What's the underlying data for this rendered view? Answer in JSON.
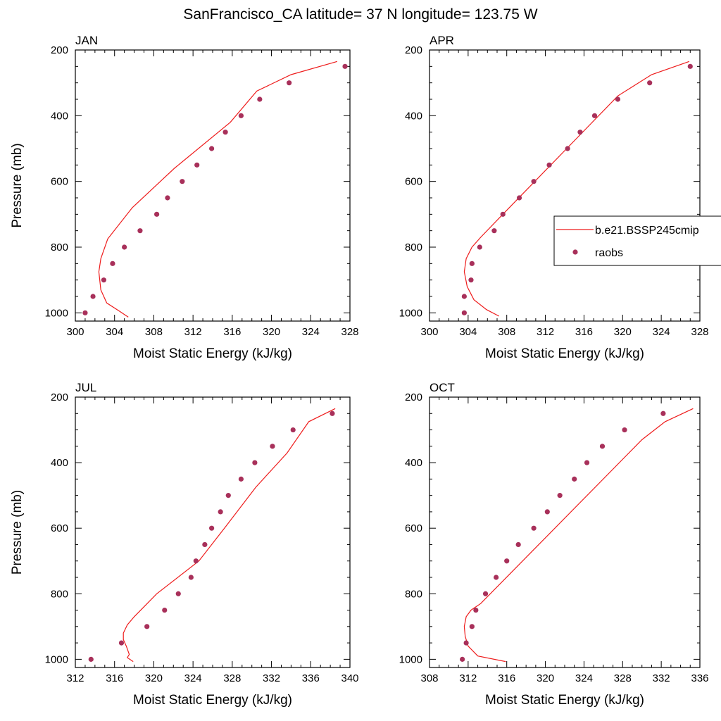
{
  "figure": {
    "title": "SanFrancisco_CA  latitude= 37 N longitude= 123.75 W",
    "model_color": "#ee1c1c",
    "obs_color": "#a8305a"
  },
  "legend": {
    "panel": "APR",
    "entries": [
      {
        "label": "b.e21.BSSP245cmip",
        "marker": "line"
      },
      {
        "label": "raobs",
        "marker": "dot"
      }
    ]
  },
  "chart_data": [
    {
      "type": "line",
      "title": "JAN",
      "xlabel": "Moist Static Energy (kJ/kg)",
      "ylabel": "Pressure (mb)",
      "xlim": [
        300,
        328
      ],
      "ylim": [
        1025,
        200
      ],
      "xticks": [
        300,
        304,
        308,
        312,
        316,
        320,
        324,
        328
      ],
      "yticks": [
        200,
        400,
        600,
        800,
        1000
      ],
      "series": [
        {
          "name": "b.e21.BSSP245cmip",
          "kind": "line",
          "x": [
            305.4,
            304.5,
            303.2,
            302.6,
            302.4,
            302.6,
            303.3,
            305.8,
            310.1,
            315.8,
            318.5,
            322.0,
            326.7
          ],
          "y": [
            1013,
            995,
            970,
            930,
            875,
            835,
            775,
            680,
            560,
            420,
            325,
            275,
            235
          ]
        },
        {
          "name": "raobs",
          "kind": "dot",
          "x": [
            301.0,
            301.8,
            302.9,
            303.8,
            305.0,
            306.6,
            308.3,
            309.4,
            310.9,
            312.4,
            313.9,
            315.3,
            316.9,
            318.8,
            321.8,
            327.5
          ],
          "y": [
            1000,
            950,
            900,
            850,
            800,
            750,
            700,
            650,
            600,
            550,
            500,
            450,
            400,
            350,
            300,
            250
          ]
        }
      ]
    },
    {
      "type": "line",
      "title": "APR",
      "xlabel": "Moist Static Energy (kJ/kg)",
      "ylabel": "",
      "xlim": [
        300,
        328
      ],
      "ylim": [
        1025,
        200
      ],
      "xticks": [
        300,
        304,
        308,
        312,
        316,
        320,
        324,
        328
      ],
      "yticks": [
        200,
        400,
        600,
        800,
        1000
      ],
      "series": [
        {
          "name": "b.e21.BSSP245cmip",
          "kind": "line",
          "x": [
            307.2,
            305.9,
            304.6,
            303.9,
            303.6,
            303.8,
            304.4,
            305.3,
            307.6,
            310.9,
            315.2,
            319.5,
            323.0,
            326.9
          ],
          "y": [
            1010,
            990,
            960,
            920,
            875,
            835,
            800,
            770,
            700,
            600,
            470,
            340,
            275,
            235
          ]
        },
        {
          "name": "raobs",
          "kind": "dot",
          "x": [
            303.6,
            303.6,
            304.3,
            304.4,
            305.2,
            306.7,
            307.6,
            309.3,
            310.8,
            312.4,
            314.3,
            315.6,
            317.1,
            319.5,
            322.8,
            327.0
          ],
          "y": [
            1000,
            950,
            900,
            850,
            800,
            750,
            700,
            650,
            600,
            550,
            500,
            450,
            400,
            350,
            300,
            250
          ]
        }
      ]
    },
    {
      "type": "line",
      "title": "JUL",
      "xlabel": "Moist Static Energy (kJ/kg)",
      "ylabel": "Pressure (mb)",
      "xlim": [
        312,
        340
      ],
      "ylim": [
        1025,
        200
      ],
      "xticks": [
        312,
        316,
        320,
        324,
        328,
        332,
        336,
        340
      ],
      "yticks": [
        200,
        400,
        600,
        800,
        1000
      ],
      "series": [
        {
          "name": "b.e21.BSSP245cmip",
          "kind": "line",
          "x": [
            317.9,
            317.3,
            317.5,
            317.2,
            316.9,
            316.9,
            317.3,
            318.0,
            320.3,
            324.6,
            327.2,
            330.4,
            333.6,
            335.8,
            338.5
          ],
          "y": [
            1007,
            995,
            985,
            960,
            940,
            920,
            895,
            870,
            800,
            700,
            600,
            475,
            370,
            275,
            235
          ]
        },
        {
          "name": "raobs",
          "kind": "dot",
          "x": [
            313.6,
            316.7,
            319.3,
            321.1,
            322.5,
            323.8,
            324.3,
            325.2,
            325.9,
            326.8,
            327.6,
            328.9,
            330.3,
            332.1,
            334.2,
            338.2
          ],
          "y": [
            1000,
            950,
            900,
            850,
            800,
            750,
            700,
            650,
            600,
            550,
            500,
            450,
            400,
            350,
            300,
            250
          ]
        }
      ]
    },
    {
      "type": "line",
      "title": "OCT",
      "xlabel": "Moist Static Energy (kJ/kg)",
      "ylabel": "",
      "xlim": [
        308,
        336
      ],
      "ylim": [
        1025,
        200
      ],
      "xticks": [
        308,
        312,
        316,
        320,
        324,
        328,
        332,
        336
      ],
      "yticks": [
        200,
        400,
        600,
        800,
        1000
      ],
      "series": [
        {
          "name": "b.e21.BSSP245cmip",
          "kind": "line",
          "x": [
            315.9,
            313.0,
            312.0,
            311.7,
            311.6,
            311.8,
            312.3,
            313.3,
            330.0,
            332.4,
            335.3
          ],
          "y": [
            1007,
            990,
            960,
            930,
            900,
            870,
            850,
            830,
            330,
            275,
            235
          ]
        },
        {
          "name": "raobs",
          "kind": "dot",
          "x": [
            311.4,
            311.8,
            312.4,
            312.8,
            313.8,
            314.9,
            316.0,
            317.2,
            318.8,
            320.2,
            321.5,
            323.0,
            324.3,
            325.9,
            328.2,
            332.2
          ],
          "y": [
            1000,
            950,
            900,
            850,
            800,
            750,
            700,
            650,
            600,
            550,
            500,
            450,
            400,
            350,
            300,
            250
          ]
        }
      ]
    }
  ]
}
